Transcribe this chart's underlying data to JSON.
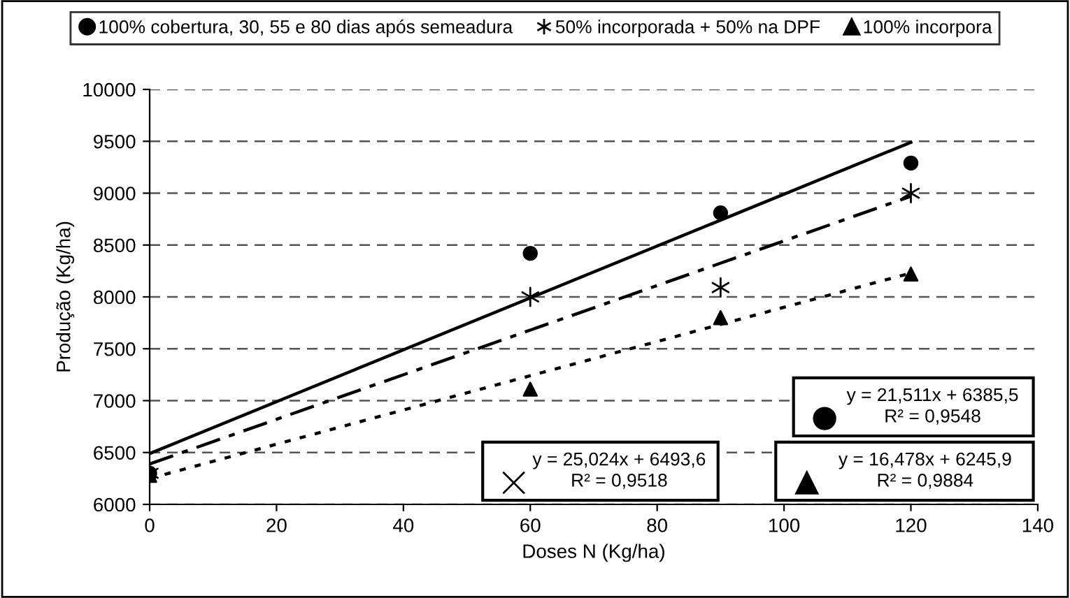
{
  "chart_data": {
    "type": "scatter",
    "xlabel": "Doses N (Kg/ha)",
    "ylabel": "Produção (Kg/ha)",
    "xlim": [
      0,
      140
    ],
    "xticks": [
      0,
      20,
      40,
      60,
      80,
      100,
      120,
      140
    ],
    "ylim": [
      6000,
      10000
    ],
    "yticks": [
      6000,
      6500,
      7000,
      7500,
      8000,
      8500,
      9000,
      9500,
      10000
    ],
    "grid": "y",
    "legend": "top",
    "series": [
      {
        "name": "100% cobertura, 30, 55 e 80 dias após semeadura",
        "color": "#000000",
        "marker": "circle",
        "x": [
          0,
          60,
          90,
          120
        ],
        "values": [
          6300,
          8420,
          8810,
          9290
        ]
      },
      {
        "name": "50% incorporada + 50% na DPF",
        "color": "#000000",
        "marker": "cross",
        "x": [
          0,
          60,
          90,
          120
        ],
        "values": [
          6300,
          8000,
          8090,
          9000
        ]
      },
      {
        "name": "100% incorpora",
        "color": "#000000",
        "marker": "triangle",
        "x": [
          0,
          60,
          90,
          120
        ],
        "values": [
          6280,
          7110,
          7800,
          8220
        ]
      },
      {
        "type": "line",
        "color": "#000000",
        "line_style": "solid",
        "x": [
          0,
          120
        ],
        "values": [
          6490,
          9490
        ]
      },
      {
        "type": "line",
        "color": "#000000",
        "line_style": "dashdot",
        "x": [
          0,
          120
        ],
        "values": [
          6390,
          8970
        ]
      },
      {
        "type": "line",
        "color": "#000000",
        "line_style": "dotted",
        "x": [
          0,
          120
        ],
        "values": [
          6250,
          8230
        ]
      }
    ],
    "annotations": [
      "y = 21,511x + 6385,5\nR² = 0,9548",
      "y = 25,024x + 6493,6\nR² = 0,9518",
      "y = 16,478x + 6245,9\nR² = 0,9884"
    ]
  }
}
